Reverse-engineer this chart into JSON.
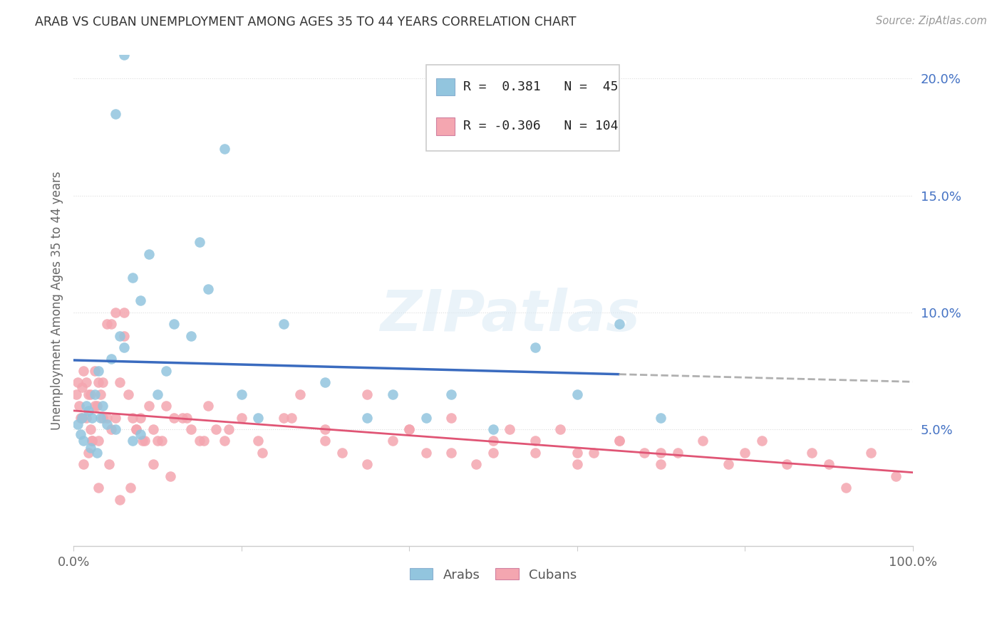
{
  "title": "ARAB VS CUBAN UNEMPLOYMENT AMONG AGES 35 TO 44 YEARS CORRELATION CHART",
  "source": "Source: ZipAtlas.com",
  "ylabel": "Unemployment Among Ages 35 to 44 years",
  "xlim": [
    0,
    100
  ],
  "ylim": [
    0,
    21
  ],
  "yticks": [
    0,
    5,
    10,
    15,
    20
  ],
  "ytick_labels": [
    "",
    "5.0%",
    "10.0%",
    "15.0%",
    "20.0%"
  ],
  "xticks": [
    0,
    20,
    40,
    60,
    80,
    100
  ],
  "xtick_labels": [
    "0.0%",
    "",
    "",
    "",
    "",
    "100.0%"
  ],
  "arab_color": "#92c5de",
  "cuban_color": "#f4a6b0",
  "arab_line_color": "#3a6bbf",
  "cuban_line_color": "#e05575",
  "dash_color": "#b0b0b0",
  "arab_R": 0.381,
  "arab_N": 45,
  "cuban_R": -0.306,
  "cuban_N": 104,
  "watermark": "ZIPatlas",
  "background_color": "#ffffff",
  "grid_color": "#dddddd",
  "arab_scatter_x": [
    0.5,
    0.8,
    1.0,
    1.2,
    1.5,
    1.8,
    2.0,
    2.2,
    2.5,
    2.8,
    3.0,
    3.2,
    3.5,
    4.0,
    4.5,
    5.0,
    5.5,
    6.0,
    7.0,
    8.0,
    9.0,
    10.0,
    11.0,
    12.0,
    14.0,
    15.0,
    16.0,
    18.0,
    20.0,
    22.0,
    25.0,
    30.0,
    35.0,
    38.0,
    42.0,
    45.0,
    50.0,
    55.0,
    60.0,
    65.0,
    70.0,
    5.0,
    6.0,
    7.0,
    8.0
  ],
  "arab_scatter_y": [
    5.2,
    4.8,
    5.5,
    4.5,
    6.0,
    5.8,
    4.2,
    5.5,
    6.5,
    4.0,
    7.5,
    5.5,
    6.0,
    5.2,
    8.0,
    5.0,
    9.0,
    8.5,
    11.5,
    10.5,
    12.5,
    6.5,
    7.5,
    9.5,
    9.0,
    13.0,
    11.0,
    17.0,
    6.5,
    5.5,
    9.5,
    7.0,
    5.5,
    6.5,
    5.5,
    6.5,
    5.0,
    8.5,
    6.5,
    9.5,
    5.5,
    18.5,
    21.0,
    4.5,
    4.8
  ],
  "cuban_scatter_x": [
    0.3,
    0.5,
    0.7,
    0.8,
    1.0,
    1.0,
    1.2,
    1.5,
    1.5,
    1.8,
    2.0,
    2.0,
    2.2,
    2.5,
    2.5,
    2.8,
    3.0,
    3.0,
    3.2,
    3.5,
    3.5,
    4.0,
    4.0,
    4.5,
    4.5,
    5.0,
    5.0,
    5.5,
    6.0,
    6.0,
    6.5,
    7.0,
    7.5,
    8.0,
    8.5,
    9.0,
    9.5,
    10.0,
    11.0,
    12.0,
    13.0,
    14.0,
    15.0,
    16.0,
    17.0,
    18.0,
    20.0,
    22.0,
    25.0,
    27.0,
    30.0,
    32.0,
    35.0,
    38.0,
    40.0,
    42.0,
    45.0,
    48.0,
    50.0,
    52.0,
    55.0,
    58.0,
    60.0,
    62.0,
    65.0,
    68.0,
    70.0,
    72.0,
    75.0,
    78.0,
    80.0,
    82.0,
    85.0,
    88.0,
    90.0,
    92.0,
    95.0,
    98.0,
    1.2,
    1.8,
    2.2,
    3.0,
    4.2,
    5.5,
    6.8,
    7.5,
    8.2,
    9.5,
    10.5,
    11.5,
    13.5,
    15.5,
    18.5,
    22.5,
    26.0,
    30.0,
    35.0,
    40.0,
    45.0,
    50.0,
    55.0,
    60.0,
    65.0,
    70.0
  ],
  "cuban_scatter_y": [
    6.5,
    7.0,
    6.0,
    5.5,
    6.8,
    5.5,
    7.5,
    5.5,
    7.0,
    6.5,
    5.0,
    6.5,
    4.5,
    6.0,
    7.5,
    6.0,
    7.0,
    4.5,
    6.5,
    5.5,
    7.0,
    5.5,
    9.5,
    5.0,
    9.5,
    5.5,
    10.0,
    7.0,
    9.0,
    10.0,
    6.5,
    5.5,
    5.0,
    5.5,
    4.5,
    6.0,
    5.0,
    4.5,
    6.0,
    5.5,
    5.5,
    5.0,
    4.5,
    6.0,
    5.0,
    4.5,
    5.5,
    4.5,
    5.5,
    6.5,
    4.5,
    4.0,
    3.5,
    4.5,
    5.0,
    4.0,
    4.0,
    3.5,
    4.5,
    5.0,
    4.0,
    5.0,
    3.5,
    4.0,
    4.5,
    4.0,
    3.5,
    4.0,
    4.5,
    3.5,
    4.0,
    4.5,
    3.5,
    4.0,
    3.5,
    2.5,
    4.0,
    3.0,
    3.5,
    4.0,
    4.5,
    2.5,
    3.5,
    2.0,
    2.5,
    5.0,
    4.5,
    3.5,
    4.5,
    3.0,
    5.5,
    4.5,
    5.0,
    4.0,
    5.5,
    5.0,
    6.5,
    5.0,
    5.5,
    4.0,
    4.5,
    4.0,
    4.5,
    4.0
  ]
}
